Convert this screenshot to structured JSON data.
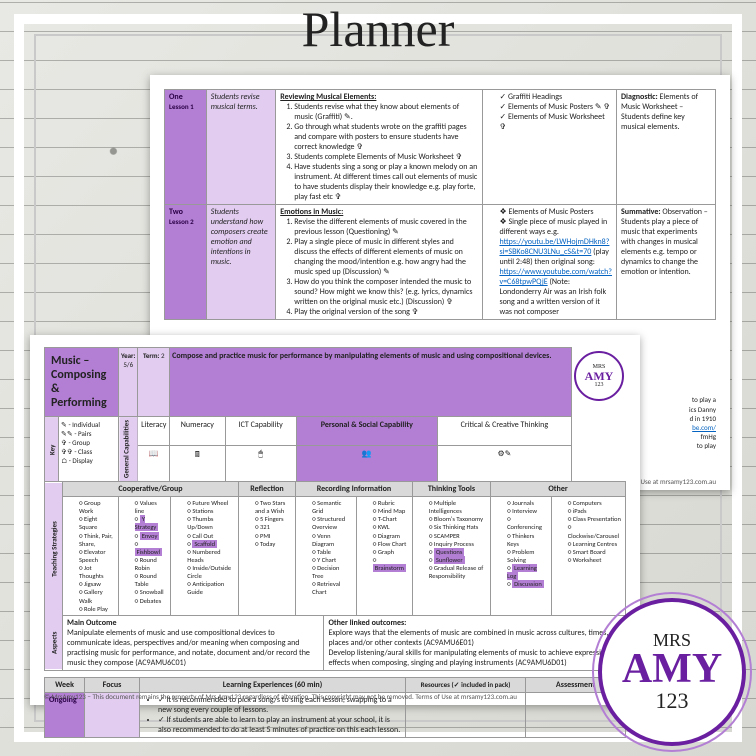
{
  "title": "Planner",
  "colors": {
    "purple": "#b37fd4",
    "lilac": "#e2cdf0",
    "deep_purple": "#6a1fa0",
    "grey": "#d9d9d9",
    "link": "#0563c1"
  },
  "logo": {
    "line1": "MRS",
    "line2": "AMY",
    "line3": "123"
  },
  "back_page": {
    "rows": [
      {
        "num": "One",
        "lesson": "Lesson 1",
        "intent": "Students revise musical terms.",
        "title": "Reviewing Musical Elements:",
        "steps": [
          "Students revise what they know about elements of music (Graffiti) ✎.",
          "Go through what students wrote on the graffiti pages and compare with posters to ensure students have correct knowledge ✞",
          "Students complete Elements of Music Worksheet ✞",
          "Have students sing a song or play a known melody on an instrument. At different times call out elements of music to have students display their knowledge e.g. play forte, play fast etc ✞"
        ],
        "resources": [
          "Graffiti Headings",
          "Elements of Music Posters ✎ ✞",
          "Elements of Music Worksheet ✞"
        ],
        "res_list_class": "check",
        "assess_title": "Diagnostic:",
        "assess_body": "Elements of Music Worksheet – Students define key musical elements."
      },
      {
        "num": "Two",
        "lesson": "Lesson 2",
        "intent": "Students understand how composers create emotion and intentions in music.",
        "title": "Emotions in Music:",
        "steps": [
          "Revise the different elements of music covered in the previous lesson (Questioning) ✎",
          "Play a single piece of music in different styles and discuss the effects of different elements of music on changing the mood/intention e.g. how angry had the music sped up (Discussion) ✎",
          "How do you think the composer intended the music to sound? How might we know this? (e.g. lyrics, dynamics written on the original music etc.) (Discussion) ✞",
          "Play the original version of the song ✞"
        ],
        "resources_links": {
          "pre": "Elements of Music Posters",
          "mid": "Single piece of music played in different ways e.g.",
          "link1_text": "https://youtu.be/LWHojmDHkn8?si=SBKo8CNU3LNu_cS&t=70",
          "link1_note": "(play until 2:48) then original song:",
          "link2_text": "https://www.youtube.com/watch?v=C68tpwPQjE",
          "note": "(Note: Londonderry Air was an Irish folk song and a written version of it was not composer"
        },
        "assess_title": "Summative:",
        "assess_body": "Observation – Students play a piece of music that experiments with changes in musical elements e.g. tempo or dynamics to change the emotion or intention."
      }
    ],
    "trailing": [
      "to play a",
      "ics Danny",
      "d in 1910",
      "be.com/",
      "fmHg",
      "to play"
    ],
    "footer": "moved. Terms of Use at mrsamy123.com.au"
  },
  "front_page": {
    "header": {
      "subject": "Music – Composing & Performing",
      "year_label": "Year:",
      "year": "5/6",
      "term_label": "Term:",
      "term": "2",
      "statement": "Compose and practice music for performance by manipulating elements of music and using compositional devices."
    },
    "key": {
      "label": "Key",
      "items": [
        "✎ - Individual",
        "✎✎ - Pairs",
        "✞ - Group",
        "✞✞ - Class",
        "⌂ - Display"
      ],
      "gc_label": "General Capabilities",
      "caps": [
        "Literacy",
        "Numeracy",
        "ICT Capability",
        "Personal & Social Capability",
        "Critical & Creative Thinking",
        "Ethical Understanding",
        "Intercultural Understanding"
      ]
    },
    "strategies": {
      "label": "Teaching Strategies",
      "groups": {
        "Cooperative/Group": [
          [
            "Group Work",
            "Eight Square",
            "Think, Pair, Share,",
            "Elevator Speech",
            "Jot Thoughts",
            "Jigsaw",
            "Gallery Walk",
            "Role Play"
          ],
          [
            "Values line",
            "Y Strategy",
            "Envoy",
            "Fishbowl",
            "Round Robin",
            "Round Table",
            "Snowball",
            "Debates"
          ],
          [
            "Future Wheel",
            "Stations",
            "Thumbs Up/Down",
            "Call Out",
            "Scaffold",
            "Numbered Heads",
            "Inside/Outside Circle",
            "Anticipation Guide"
          ]
        ],
        "Reflection": [
          [
            "Two Stars and a Wish",
            "5 Fingers",
            "321",
            "PMI",
            "Today"
          ]
        ],
        "Recording Information": [
          [
            "Semantic Grid",
            "Structured Overview",
            "Venn Diagram",
            "Table",
            "Y Chart",
            "Decision Tree",
            "Retrieval Chart"
          ],
          [
            "Rubric",
            "Mind Map",
            "T-Chart",
            "KWL",
            "Diagram",
            "Flow Chart",
            "Graph",
            "Brainstorm"
          ]
        ],
        "Thinking Tools": [
          [
            "Multiple Intelligences",
            "Bloom's Taxonomy",
            "Six Thinking Hats",
            "SCAMPER",
            "Inquiry Process",
            "Questions",
            "Sunflower",
            "Gradual Release of Responsibility"
          ]
        ],
        "Other": [
          [
            "Journals",
            "Interview",
            "Conferencing",
            "Thinkers Keys",
            "Problem Solving",
            "Learning Log",
            "Discussion"
          ],
          [
            "Computers",
            "iPads",
            "Class Presentation",
            "Clockwise/Carousel",
            "Learning Centres",
            "Smart Board",
            "Worksheet"
          ]
        ]
      },
      "highlighted": [
        "Y Strategy",
        "Envoy",
        "Fishbowl",
        "Scaffold",
        "Brainstorm",
        "Questions",
        "Sunflower",
        "Learning Log",
        "Discussion"
      ]
    },
    "aspects": {
      "label": "Aspects",
      "main_label": "Main Outcome",
      "main": "Manipulate elements of music and use compositional devices to communicate ideas, perspectives and/or meaning when composing and practising music for performance, and notate, document and/or record the music they compose (AC9AMU6C01)",
      "other_label": "Other linked outcomes:",
      "other1": "Explore ways that the elements of music are combined in music across cultures, times, places and/or other contexts (AC9AMU6E01)",
      "other2": "Develop listening/aural skills for manipulating elements of music to achieve expressive effects when composing, singing and playing instruments (AC9AMU6D01)"
    },
    "table": {
      "headers": [
        "Week",
        "Focus",
        "Learning Experiences (60 min)",
        "Resources (✓ included in pack)",
        "Assessment"
      ],
      "row1": {
        "week": "Ongoing",
        "exp": [
          "It is recommended to pick a song/s to sing each lesson, swapping to a new song every couple of lessons.",
          "If students are able to learn to play an instrument at your school, it is also recommended to do at least 5 minutes of practice on this each lesson."
        ]
      }
    },
    "footer": "© MrsAmy123 – This document remains the property of Mrs Amy123 regardless of alteration. This copyright may not be removed. Terms of Use at mrsamy123.com.au"
  }
}
